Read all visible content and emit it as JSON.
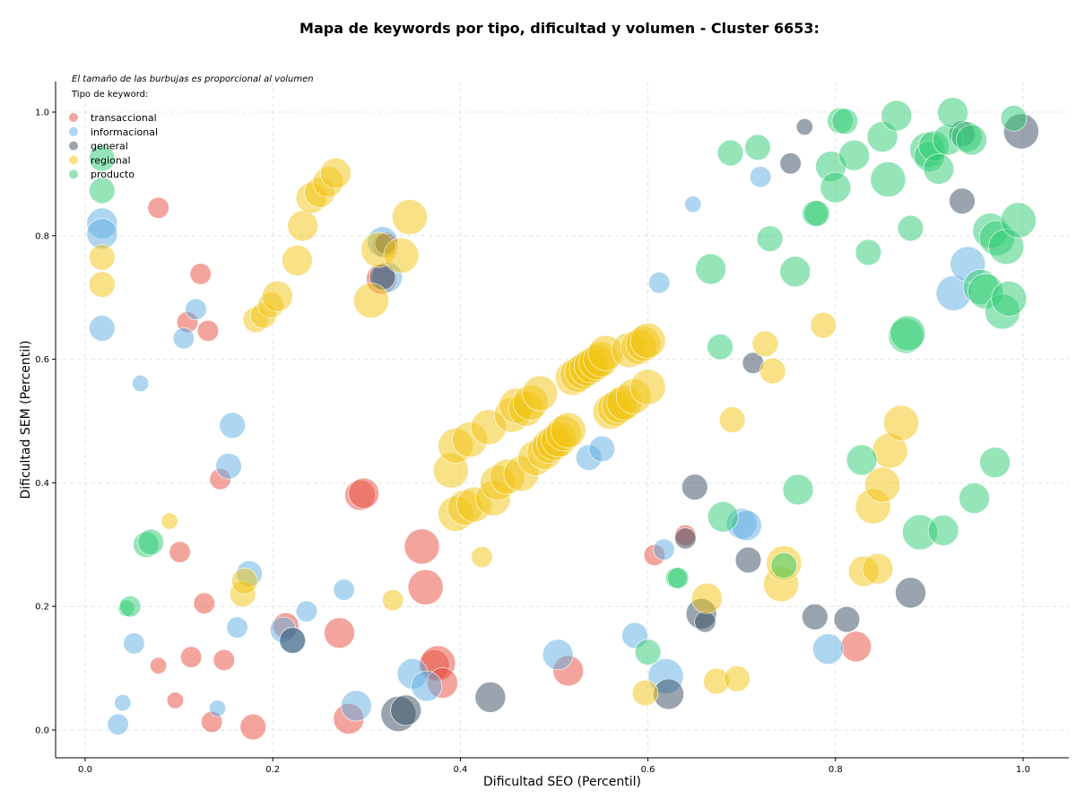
{
  "chart_data": {
    "type": "scatter",
    "title": "Mapa de keywords por tipo, dificultad y volumen - Cluster 6653:",
    "xlabel": "Dificultad SEO (Percentil)",
    "ylabel": "Dificultad SEM (Percentil)",
    "xlim": [
      -0.03,
      1.05
    ],
    "ylim": [
      -0.045,
      1.05
    ],
    "xticks": [
      0.0,
      0.2,
      0.4,
      0.6,
      0.8,
      1.0
    ],
    "yticks": [
      0.0,
      0.2,
      0.4,
      0.6,
      0.8,
      1.0
    ],
    "xtick_labels": [
      "0.0",
      "0.2",
      "0.4",
      "0.6",
      "0.8",
      "1.0"
    ],
    "ytick_labels": [
      "0.0",
      "0.2",
      "0.4",
      "0.6",
      "0.8",
      "1.0"
    ],
    "grid": true,
    "annotation": "El tamaño de las burbujas es proporcional al volumen",
    "legend_title": "Tipo de keyword:",
    "legend_position": "top-left",
    "series": [
      {
        "name": "transaccional",
        "color": "#E74C3C",
        "points": [
          [
            0.078,
            0.845,
            3
          ],
          [
            0.123,
            0.738,
            3
          ],
          [
            0.109,
            0.66,
            3
          ],
          [
            0.131,
            0.646,
            3
          ],
          [
            0.144,
            0.406,
            3
          ],
          [
            0.101,
            0.288,
            3
          ],
          [
            0.127,
            0.205,
            3
          ],
          [
            0.148,
            0.113,
            3
          ],
          [
            0.113,
            0.118,
            3
          ],
          [
            0.078,
            0.104,
            2
          ],
          [
            0.096,
            0.048,
            2
          ],
          [
            0.135,
            0.013,
            3
          ],
          [
            0.179,
            0.005,
            4
          ],
          [
            0.214,
            0.169,
            4
          ],
          [
            0.271,
            0.157,
            5
          ],
          [
            0.281,
            0.018,
            5
          ],
          [
            0.293,
            0.38,
            5
          ],
          [
            0.297,
            0.383,
            5
          ],
          [
            0.359,
            0.297,
            6
          ],
          [
            0.363,
            0.231,
            6
          ],
          [
            0.372,
            0.105,
            5
          ],
          [
            0.376,
            0.108,
            6
          ],
          [
            0.381,
            0.076,
            5
          ],
          [
            0.316,
            0.73,
            5
          ],
          [
            0.32,
            0.785,
            4
          ],
          [
            0.515,
            0.096,
            5
          ],
          [
            0.607,
            0.283,
            3
          ],
          [
            0.64,
            0.315,
            3
          ],
          [
            0.822,
            0.135,
            5
          ]
        ]
      },
      {
        "name": "informacional",
        "color": "#5DADE2",
        "points": [
          [
            0.018,
            0.82,
            5
          ],
          [
            0.018,
            0.803,
            5
          ],
          [
            0.018,
            0.65,
            4
          ],
          [
            0.059,
            0.561,
            2
          ],
          [
            0.105,
            0.634,
            3
          ],
          [
            0.118,
            0.681,
            3
          ],
          [
            0.157,
            0.493,
            4
          ],
          [
            0.153,
            0.427,
            4
          ],
          [
            0.175,
            0.253,
            4
          ],
          [
            0.162,
            0.166,
            3
          ],
          [
            0.236,
            0.192,
            3
          ],
          [
            0.276,
            0.227,
            3
          ],
          [
            0.211,
            0.162,
            4
          ],
          [
            0.221,
            0.145,
            4
          ],
          [
            0.052,
            0.14,
            3
          ],
          [
            0.04,
            0.044,
            2
          ],
          [
            0.035,
            0.009,
            3
          ],
          [
            0.141,
            0.035,
            2
          ],
          [
            0.289,
            0.039,
            5
          ],
          [
            0.349,
            0.091,
            5
          ],
          [
            0.364,
            0.071,
            5
          ],
          [
            0.317,
            0.79,
            5
          ],
          [
            0.322,
            0.733,
            5
          ],
          [
            0.504,
            0.122,
            5
          ],
          [
            0.537,
            0.441,
            4
          ],
          [
            0.551,
            0.455,
            4
          ],
          [
            0.586,
            0.153,
            4
          ],
          [
            0.619,
            0.087,
            6
          ],
          [
            0.612,
            0.724,
            3
          ],
          [
            0.617,
            0.292,
            3
          ],
          [
            0.648,
            0.851,
            2
          ],
          [
            0.7,
            0.334,
            5
          ],
          [
            0.705,
            0.331,
            5
          ],
          [
            0.72,
            0.895,
            3
          ],
          [
            0.792,
            0.131,
            5
          ],
          [
            0.926,
            0.707,
            6
          ],
          [
            0.941,
            0.754,
            6
          ]
        ]
      },
      {
        "name": "general",
        "color": "#34495E",
        "points": [
          [
            0.221,
            0.145,
            4
          ],
          [
            0.317,
            0.733,
            4
          ],
          [
            0.32,
            0.787,
            3
          ],
          [
            0.334,
            0.026,
            6
          ],
          [
            0.342,
            0.032,
            5
          ],
          [
            0.432,
            0.053,
            5
          ],
          [
            0.622,
            0.058,
            5
          ],
          [
            0.65,
            0.393,
            4
          ],
          [
            0.64,
            0.31,
            3
          ],
          [
            0.657,
            0.188,
            5
          ],
          [
            0.661,
            0.175,
            3
          ],
          [
            0.712,
            0.594,
            3
          ],
          [
            0.707,
            0.275,
            4
          ],
          [
            0.752,
            0.917,
            3
          ],
          [
            0.767,
            0.976,
            2
          ],
          [
            0.778,
            0.183,
            4
          ],
          [
            0.812,
            0.179,
            4
          ],
          [
            0.88,
            0.222,
            5
          ],
          [
            0.935,
            0.965,
            4
          ],
          [
            0.935,
            0.856,
            4
          ],
          [
            0.998,
            0.969,
            6
          ]
        ]
      },
      {
        "name": "regional",
        "color": "#F1C40F",
        "points": [
          [
            0.018,
            0.765,
            4
          ],
          [
            0.018,
            0.721,
            4
          ],
          [
            0.09,
            0.338,
            2
          ],
          [
            0.168,
            0.22,
            4
          ],
          [
            0.17,
            0.241,
            4
          ],
          [
            0.182,
            0.664,
            4
          ],
          [
            0.19,
            0.671,
            4
          ],
          [
            0.198,
            0.688,
            4
          ],
          [
            0.205,
            0.702,
            5
          ],
          [
            0.226,
            0.76,
            5
          ],
          [
            0.232,
            0.816,
            5
          ],
          [
            0.241,
            0.861,
            5
          ],
          [
            0.25,
            0.87,
            5
          ],
          [
            0.259,
            0.887,
            5
          ],
          [
            0.267,
            0.901,
            5
          ],
          [
            0.305,
            0.695,
            6
          ],
          [
            0.313,
            0.777,
            6
          ],
          [
            0.337,
            0.768,
            6
          ],
          [
            0.346,
            0.83,
            6
          ],
          [
            0.328,
            0.21,
            3
          ],
          [
            0.423,
            0.28,
            3
          ],
          [
            0.39,
            0.42,
            6
          ],
          [
            0.395,
            0.35,
            6
          ],
          [
            0.395,
            0.46,
            6
          ],
          [
            0.405,
            0.36,
            6
          ],
          [
            0.41,
            0.47,
            6
          ],
          [
            0.415,
            0.365,
            6
          ],
          [
            0.43,
            0.49,
            6
          ],
          [
            0.435,
            0.375,
            6
          ],
          [
            0.44,
            0.4,
            6
          ],
          [
            0.45,
            0.41,
            6
          ],
          [
            0.455,
            0.51,
            6
          ],
          [
            0.46,
            0.525,
            6
          ],
          [
            0.465,
            0.415,
            6
          ],
          [
            0.47,
            0.52,
            6
          ],
          [
            0.475,
            0.53,
            6
          ],
          [
            0.48,
            0.44,
            6
          ],
          [
            0.485,
            0.545,
            6
          ],
          [
            0.49,
            0.45,
            6
          ],
          [
            0.495,
            0.46,
            6
          ],
          [
            0.5,
            0.465,
            6
          ],
          [
            0.505,
            0.47,
            6
          ],
          [
            0.51,
            0.48,
            6
          ],
          [
            0.515,
            0.485,
            6
          ],
          [
            0.52,
            0.57,
            6
          ],
          [
            0.525,
            0.575,
            6
          ],
          [
            0.53,
            0.58,
            6
          ],
          [
            0.535,
            0.585,
            6
          ],
          [
            0.54,
            0.59,
            6
          ],
          [
            0.545,
            0.595,
            6
          ],
          [
            0.55,
            0.6,
            6
          ],
          [
            0.555,
            0.61,
            6
          ],
          [
            0.56,
            0.515,
            6
          ],
          [
            0.565,
            0.52,
            6
          ],
          [
            0.57,
            0.525,
            6
          ],
          [
            0.575,
            0.53,
            6
          ],
          [
            0.58,
            0.615,
            6
          ],
          [
            0.585,
            0.54,
            6
          ],
          [
            0.59,
            0.62,
            6
          ],
          [
            0.595,
            0.625,
            6
          ],
          [
            0.6,
            0.555,
            6
          ],
          [
            0.6,
            0.63,
            6
          ],
          [
            0.597,
            0.06,
            4
          ],
          [
            0.663,
            0.213,
            5
          ],
          [
            0.673,
            0.079,
            4
          ],
          [
            0.69,
            0.502,
            4
          ],
          [
            0.695,
            0.083,
            4
          ],
          [
            0.725,
            0.625,
            4
          ],
          [
            0.733,
            0.581,
            4
          ],
          [
            0.742,
            0.236,
            6
          ],
          [
            0.745,
            0.27,
            6
          ],
          [
            0.787,
            0.655,
            4
          ],
          [
            0.83,
            0.257,
            5
          ],
          [
            0.84,
            0.362,
            6
          ],
          [
            0.845,
            0.261,
            5
          ],
          [
            0.85,
            0.397,
            6
          ],
          [
            0.858,
            0.452,
            6
          ],
          [
            0.87,
            0.497,
            6
          ]
        ]
      },
      {
        "name": "producto",
        "color": "#2ECC71",
        "points": [
          [
            0.018,
            0.925,
            4
          ],
          [
            0.018,
            0.873,
            4
          ],
          [
            0.044,
            0.197,
            2
          ],
          [
            0.048,
            0.2,
            3
          ],
          [
            0.065,
            0.3,
            4
          ],
          [
            0.07,
            0.304,
            4
          ],
          [
            0.63,
            0.246,
            3
          ],
          [
            0.632,
            0.246,
            3
          ],
          [
            0.6,
            0.126,
            4
          ],
          [
            0.667,
            0.746,
            5
          ],
          [
            0.677,
            0.62,
            4
          ],
          [
            0.68,
            0.345,
            5
          ],
          [
            0.688,
            0.934,
            4
          ],
          [
            0.717,
            0.943,
            4
          ],
          [
            0.73,
            0.795,
            4
          ],
          [
            0.745,
            0.266,
            4
          ],
          [
            0.757,
            0.742,
            5
          ],
          [
            0.76,
            0.389,
            5
          ],
          [
            0.778,
            0.836,
            4
          ],
          [
            0.78,
            0.836,
            4
          ],
          [
            0.795,
            0.912,
            5
          ],
          [
            0.8,
            0.878,
            5
          ],
          [
            0.805,
            0.986,
            4
          ],
          [
            0.81,
            0.985,
            4
          ],
          [
            0.82,
            0.93,
            5
          ],
          [
            0.828,
            0.437,
            5
          ],
          [
            0.835,
            0.773,
            4
          ],
          [
            0.85,
            0.96,
            5
          ],
          [
            0.856,
            0.891,
            6
          ],
          [
            0.865,
            0.994,
            5
          ],
          [
            0.875,
            0.638,
            6
          ],
          [
            0.877,
            0.642,
            6
          ],
          [
            0.88,
            0.812,
            4
          ],
          [
            0.89,
            0.32,
            6
          ],
          [
            0.898,
            0.939,
            6
          ],
          [
            0.9,
            0.928,
            5
          ],
          [
            0.905,
            0.945,
            5
          ],
          [
            0.91,
            0.908,
            5
          ],
          [
            0.915,
            0.323,
            5
          ],
          [
            0.92,
            0.955,
            5
          ],
          [
            0.925,
            0.999,
            5
          ],
          [
            0.94,
            0.96,
            5
          ],
          [
            0.945,
            0.955,
            5
          ],
          [
            0.948,
            0.375,
            5
          ],
          [
            0.955,
            0.717,
            6
          ],
          [
            0.96,
            0.71,
            6
          ],
          [
            0.965,
            0.808,
            6
          ],
          [
            0.97,
            0.433,
            5
          ],
          [
            0.972,
            0.796,
            6
          ],
          [
            0.978,
            0.677,
            6
          ],
          [
            0.982,
            0.782,
            6
          ],
          [
            0.985,
            0.698,
            6
          ],
          [
            0.99,
            0.99,
            4
          ],
          [
            0.995,
            0.825,
            6
          ]
        ]
      }
    ]
  }
}
